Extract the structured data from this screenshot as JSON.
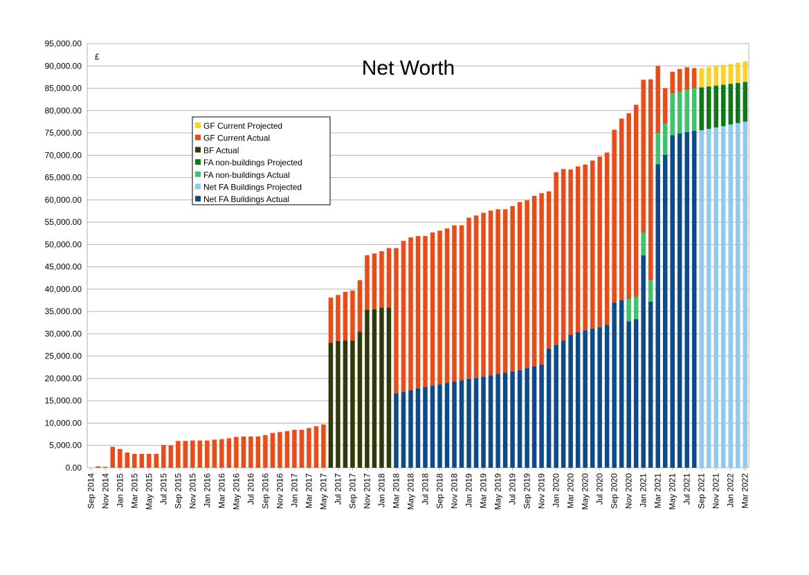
{
  "chart_data": {
    "type": "bar",
    "stacked": true,
    "title": "Net Worth",
    "unit_label": "£",
    "ylim": [
      0,
      95000
    ],
    "y_tick_step": 5000,
    "y_ticks": [
      "0.00",
      "5,000.00",
      "10,000.00",
      "15,000.00",
      "20,000.00",
      "25,000.00",
      "30,000.00",
      "35,000.00",
      "40,000.00",
      "45,000.00",
      "50,000.00",
      "55,000.00",
      "60,000.00",
      "65,000.00",
      "70,000.00",
      "75,000.00",
      "80,000.00",
      "85,000.00",
      "90,000.00",
      "95,000.00"
    ],
    "grid": true,
    "legend_position": "upper-left",
    "categories": [
      "Sep 2014",
      "Oct 2014",
      "Nov 2014",
      "Dec 2014",
      "Jan 2015",
      "Feb 2015",
      "Mar 2015",
      "Apr 2015",
      "May 2015",
      "Jun 2015",
      "Jul 2015",
      "Aug 2015",
      "Sep 2015",
      "Oct 2015",
      "Nov 2015",
      "Dec 2015",
      "Jan 2016",
      "Feb 2016",
      "Mar 2016",
      "Apr 2016",
      "May 2016",
      "Jun 2016",
      "Jul 2016",
      "Aug 2016",
      "Sep 2016",
      "Oct 2016",
      "Nov 2016",
      "Dec 2016",
      "Jan 2017",
      "Feb 2017",
      "Mar 2017",
      "Apr 2017",
      "May 2017",
      "Jun 2017",
      "Jul 2017",
      "Aug 2017",
      "Sep 2017",
      "Oct 2017",
      "Nov 2017",
      "Dec 2017",
      "Jan 2018",
      "Feb 2018",
      "Mar 2018",
      "Apr 2018",
      "May 2018",
      "Jun 2018",
      "Jul 2018",
      "Aug 2018",
      "Sep 2018",
      "Oct 2018",
      "Nov 2018",
      "Dec 2018",
      "Jan 2019",
      "Feb 2019",
      "Mar 2019",
      "Apr 2019",
      "May 2019",
      "Jun 2019",
      "Jul 2019",
      "Aug 2019",
      "Sep 2019",
      "Oct 2019",
      "Nov 2019",
      "Dec 2019",
      "Jan 2020",
      "Feb 2020",
      "Mar 2020",
      "Apr 2020",
      "May 2020",
      "Jun 2020",
      "Jul 2020",
      "Aug 2020",
      "Sep 2020",
      "Oct 2020",
      "Nov 2020",
      "Dec 2020",
      "Jan 2021",
      "Feb 2021",
      "Mar 2021",
      "Apr 2021",
      "May 2021",
      "Jun 2021",
      "Jul 2021",
      "Aug 2021",
      "Sep 2021",
      "Oct 2021",
      "Nov 2021",
      "Dec 2021",
      "Jan 2022",
      "Feb 2022",
      "Mar 2022"
    ],
    "x_tick_labels": [
      "Sep 2014",
      "Nov 2014",
      "Jan 2015",
      "Mar 2015",
      "May 2015",
      "Jul 2015",
      "Sep 2015",
      "Nov 2015",
      "Jan 2016",
      "Mar 2016",
      "May 2016",
      "Jul 2016",
      "Sep 2016",
      "Nov 2016",
      "Jan 2017",
      "Mar 2017",
      "May 2017",
      "Jul 2017",
      "Sep 2017",
      "Nov 2017",
      "Jan 2018",
      "Mar 2018",
      "May 2018",
      "Jul 2018",
      "Sep 2018",
      "Nov 2018",
      "Jan 2019",
      "Mar 2019",
      "May 2019",
      "Jul 2019",
      "Sep 2019",
      "Nov 2019",
      "Jan 2020",
      "Mar 2020",
      "May 2020",
      "Jul 2020",
      "Sep 2020",
      "Nov 2020",
      "Jan 2021",
      "Mar 2021",
      "May 2021",
      "Jul 2021",
      "Sep 2021",
      "Nov 2021",
      "Jan 2022",
      "Mar 2022"
    ],
    "series": [
      {
        "name": "Net FA Buildings Actual",
        "color": "#0b4a8c",
        "values": [
          0,
          0,
          0,
          0,
          0,
          0,
          0,
          0,
          0,
          0,
          0,
          0,
          0,
          0,
          0,
          0,
          0,
          0,
          0,
          0,
          0,
          0,
          0,
          0,
          0,
          0,
          0,
          0,
          0,
          0,
          0,
          0,
          0,
          0,
          0,
          0,
          0,
          0,
          0,
          0,
          0,
          0,
          16700,
          17000,
          17400,
          17800,
          18100,
          18400,
          18700,
          19000,
          19300,
          19600,
          19900,
          20100,
          20400,
          20700,
          21000,
          21300,
          21600,
          21900,
          22300,
          22700,
          23100,
          26700,
          27500,
          28500,
          29800,
          30300,
          30800,
          31200,
          31500,
          32000,
          37000,
          37500,
          32800,
          33300,
          47600,
          37200,
          68000,
          70100,
          74500,
          74900,
          75200,
          75500,
          0,
          0,
          0,
          0,
          0,
          0,
          0
        ]
      },
      {
        "name": "Net FA Buildings Projected",
        "color": "#8ecbf0",
        "values": [
          0,
          0,
          0,
          0,
          0,
          0,
          0,
          0,
          0,
          0,
          0,
          0,
          0,
          0,
          0,
          0,
          0,
          0,
          0,
          0,
          0,
          0,
          0,
          0,
          0,
          0,
          0,
          0,
          0,
          0,
          0,
          0,
          0,
          0,
          0,
          0,
          0,
          0,
          0,
          0,
          0,
          0,
          0,
          0,
          0,
          0,
          0,
          0,
          0,
          0,
          0,
          0,
          0,
          0,
          0,
          0,
          0,
          0,
          0,
          0,
          0,
          0,
          0,
          0,
          0,
          0,
          0,
          0,
          0,
          0,
          0,
          0,
          0,
          0,
          0,
          0,
          0,
          0,
          0,
          0,
          0,
          0,
          0,
          0,
          75600,
          75900,
          76200,
          76500,
          76900,
          77200,
          77500
        ]
      },
      {
        "name": "BF Actual",
        "color": "#2f3a06",
        "values": [
          0,
          0,
          0,
          0,
          0,
          0,
          0,
          0,
          0,
          0,
          0,
          0,
          0,
          0,
          0,
          0,
          0,
          0,
          0,
          0,
          0,
          0,
          0,
          0,
          0,
          0,
          0,
          0,
          0,
          0,
          0,
          0,
          0,
          28000,
          28400,
          28500,
          28500,
          30500,
          35400,
          35500,
          35900,
          35900,
          0,
          0,
          0,
          0,
          0,
          0,
          0,
          0,
          0,
          0,
          0,
          0,
          0,
          0,
          0,
          0,
          0,
          0,
          0,
          0,
          0,
          0,
          0,
          0,
          0,
          0,
          0,
          0,
          0,
          0,
          0,
          0,
          0,
          0,
          0,
          0,
          0,
          0,
          0,
          0,
          0,
          0,
          0,
          0,
          0,
          0,
          0,
          0,
          0
        ]
      },
      {
        "name": "FA non-buildings Actual",
        "color": "#3cc46b",
        "values": [
          0,
          0,
          0,
          0,
          0,
          0,
          0,
          0,
          0,
          0,
          0,
          0,
          0,
          0,
          0,
          0,
          0,
          0,
          0,
          0,
          0,
          0,
          0,
          0,
          0,
          0,
          0,
          0,
          0,
          0,
          0,
          0,
          0,
          0,
          0,
          0,
          0,
          0,
          0,
          0,
          0,
          0,
          0,
          0,
          0,
          0,
          0,
          0,
          0,
          0,
          0,
          0,
          0,
          0,
          0,
          0,
          0,
          0,
          0,
          0,
          0,
          0,
          0,
          0,
          0,
          0,
          0,
          0,
          0,
          0,
          0,
          0,
          0,
          0,
          5000,
          5000,
          5000,
          4800,
          7000,
          7000,
          9300,
          9300,
          9400,
          9500,
          0,
          0,
          0,
          0,
          0,
          0,
          0
        ]
      },
      {
        "name": "FA non-buildings Projected",
        "color": "#0c7a14",
        "values": [
          0,
          0,
          0,
          0,
          0,
          0,
          0,
          0,
          0,
          0,
          0,
          0,
          0,
          0,
          0,
          0,
          0,
          0,
          0,
          0,
          0,
          0,
          0,
          0,
          0,
          0,
          0,
          0,
          0,
          0,
          0,
          0,
          0,
          0,
          0,
          0,
          0,
          0,
          0,
          0,
          0,
          0,
          0,
          0,
          0,
          0,
          0,
          0,
          0,
          0,
          0,
          0,
          0,
          0,
          0,
          0,
          0,
          0,
          0,
          0,
          0,
          0,
          0,
          0,
          0,
          0,
          0,
          0,
          0,
          0,
          0,
          0,
          0,
          0,
          0,
          0,
          0,
          0,
          0,
          0,
          0,
          0,
          0,
          0,
          9600,
          9500,
          9400,
          9300,
          9100,
          9000,
          8900
        ]
      },
      {
        "name": "GF Current Actual",
        "color": "#ef4a16",
        "values": [
          0,
          300,
          200,
          4700,
          4200,
          3400,
          3100,
          3100,
          3100,
          3100,
          5100,
          5000,
          6000,
          6000,
          6100,
          6100,
          6100,
          6300,
          6400,
          6600,
          6900,
          7000,
          7000,
          7000,
          7300,
          7800,
          8000,
          8200,
          8500,
          8500,
          8900,
          9300,
          9700,
          10100,
          10300,
          10900,
          11200,
          11500,
          12200,
          12500,
          12600,
          13300,
          32500,
          33800,
          34200,
          34100,
          33800,
          34300,
          34400,
          34600,
          35000,
          34700,
          36100,
          36400,
          36700,
          36900,
          36900,
          36600,
          37000,
          37600,
          37600,
          38200,
          38400,
          35200,
          38700,
          38400,
          37000,
          37200,
          37100,
          37600,
          38200,
          38600,
          38700,
          40700,
          41600,
          43000,
          34300,
          45000,
          15000,
          7900,
          4900,
          5100,
          5100,
          4500,
          0,
          0,
          0,
          0,
          0,
          0,
          0
        ]
      },
      {
        "name": "GF Current Projected",
        "color": "#ffd11e",
        "values": [
          0,
          0,
          0,
          0,
          0,
          0,
          0,
          0,
          0,
          0,
          0,
          0,
          0,
          0,
          0,
          0,
          0,
          0,
          0,
          0,
          0,
          0,
          0,
          0,
          0,
          0,
          0,
          0,
          0,
          0,
          0,
          0,
          0,
          0,
          0,
          0,
          0,
          0,
          0,
          0,
          0,
          0,
          0,
          0,
          0,
          0,
          0,
          0,
          0,
          0,
          0,
          0,
          0,
          0,
          0,
          0,
          0,
          0,
          0,
          0,
          0,
          0,
          0,
          0,
          0,
          0,
          0,
          0,
          0,
          0,
          0,
          0,
          0,
          0,
          0,
          0,
          0,
          0,
          0,
          0,
          0,
          0,
          0,
          0,
          4300,
          4300,
          4400,
          4400,
          4400,
          4500,
          4600
        ]
      }
    ],
    "legend_order": [
      "GF Current Projected",
      "GF Current Actual",
      "BF Actual",
      "FA non-buildings Projected",
      "FA non-buildings Actual",
      "Net FA Buildings Projected",
      "Net FA Buildings Actual"
    ]
  }
}
